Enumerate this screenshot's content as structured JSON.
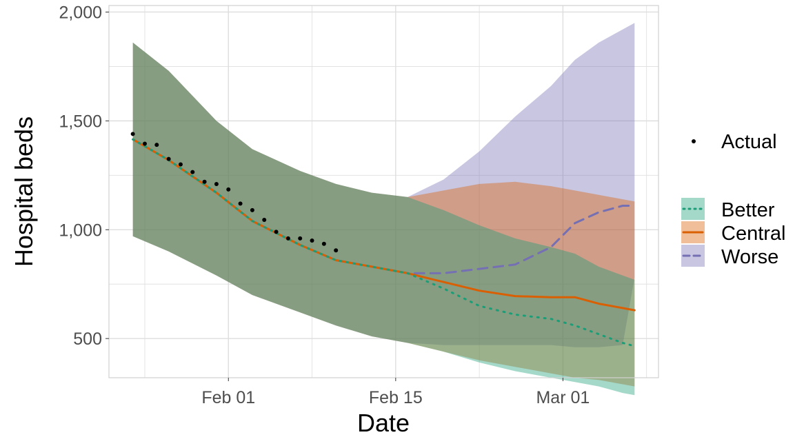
{
  "chart_data": {
    "type": "line",
    "title": "",
    "xlabel": "Date",
    "ylabel": "Hospital beds",
    "x_ticks": [
      {
        "date": "2021-02-01",
        "label": "Feb 01"
      },
      {
        "date": "2021-02-15",
        "label": "Feb 15"
      },
      {
        "date": "2021-03-01",
        "label": "Mar 01"
      }
    ],
    "y_ticks": [
      {
        "value": 500,
        "label": "500"
      },
      {
        "value": 1000,
        "label": "1,000"
      },
      {
        "value": 1500,
        "label": "1,500"
      },
      {
        "value": 2000,
        "label": "2,000"
      }
    ],
    "xlim": [
      "2021-01-22",
      "2021-03-09"
    ],
    "ylim": [
      320,
      2030
    ],
    "grid": true,
    "legend_position": "right",
    "legend_actual_label": "Actual",
    "legend_scenarios": [
      "Better",
      "Central",
      "Worse"
    ],
    "colors": {
      "better": "#1b9e77",
      "central": "#d95f02",
      "worse": "#7570b3",
      "actual": "#000000",
      "grid": "#dedede",
      "background": "#ffffff"
    },
    "actual": {
      "x": [
        "2021-01-24",
        "2021-01-25",
        "2021-01-26",
        "2021-01-27",
        "2021-01-28",
        "2021-01-29",
        "2021-01-30",
        "2021-01-31",
        "2021-02-01",
        "2021-02-02",
        "2021-02-03",
        "2021-02-04",
        "2021-02-05",
        "2021-02-06",
        "2021-02-07",
        "2021-02-08",
        "2021-02-09",
        "2021-02-10"
      ],
      "y": [
        1440,
        1395,
        1390,
        1325,
        1300,
        1265,
        1220,
        1210,
        1185,
        1120,
        1090,
        1045,
        990,
        960,
        960,
        950,
        935,
        905
      ]
    },
    "series": [
      {
        "name": "Worse",
        "x": [
          "2021-01-24",
          "2021-01-27",
          "2021-01-31",
          "2021-02-03",
          "2021-02-07",
          "2021-02-10",
          "2021-02-13",
          "2021-02-16",
          "2021-02-19",
          "2021-02-22",
          "2021-02-25",
          "2021-02-28",
          "2021-03-02",
          "2021-03-04",
          "2021-03-06",
          "2021-03-07"
        ],
        "y": [
          1415,
          1320,
          1170,
          1040,
          930,
          860,
          830,
          800,
          800,
          820,
          840,
          920,
          1030,
          1080,
          1110,
          1110
        ],
        "lower": [
          970,
          900,
          790,
          700,
          620,
          560,
          510,
          480,
          470,
          470,
          470,
          470,
          460,
          460,
          470,
          780
        ],
        "upper": [
          1860,
          1730,
          1500,
          1370,
          1270,
          1210,
          1170,
          1150,
          1230,
          1360,
          1520,
          1660,
          1780,
          1860,
          1920,
          1950
        ]
      },
      {
        "name": "Central",
        "x": [
          "2021-01-24",
          "2021-01-27",
          "2021-01-31",
          "2021-02-03",
          "2021-02-07",
          "2021-02-10",
          "2021-02-13",
          "2021-02-16",
          "2021-02-19",
          "2021-02-22",
          "2021-02-25",
          "2021-02-28",
          "2021-03-02",
          "2021-03-04",
          "2021-03-06",
          "2021-03-07"
        ],
        "y": [
          1415,
          1320,
          1170,
          1040,
          930,
          860,
          830,
          800,
          760,
          720,
          695,
          690,
          690,
          660,
          640,
          630
        ],
        "lower": [
          970,
          900,
          790,
          700,
          620,
          560,
          510,
          480,
          440,
          400,
          370,
          340,
          320,
          310,
          290,
          280
        ],
        "upper": [
          1860,
          1730,
          1500,
          1370,
          1270,
          1210,
          1170,
          1150,
          1180,
          1210,
          1220,
          1200,
          1180,
          1160,
          1140,
          1130
        ]
      },
      {
        "name": "Better",
        "x": [
          "2021-01-24",
          "2021-01-27",
          "2021-01-31",
          "2021-02-03",
          "2021-02-07",
          "2021-02-10",
          "2021-02-13",
          "2021-02-16",
          "2021-02-19",
          "2021-02-22",
          "2021-02-25",
          "2021-02-28",
          "2021-03-02",
          "2021-03-04",
          "2021-03-06",
          "2021-03-07"
        ],
        "y": [
          1415,
          1320,
          1170,
          1040,
          930,
          860,
          830,
          800,
          730,
          650,
          610,
          590,
          560,
          520,
          480,
          465
        ],
        "lower": [
          970,
          900,
          790,
          700,
          620,
          560,
          510,
          480,
          440,
          390,
          350,
          320,
          300,
          280,
          250,
          240
        ],
        "upper": [
          1860,
          1730,
          1500,
          1370,
          1270,
          1210,
          1170,
          1150,
          1090,
          1020,
          960,
          920,
          890,
          830,
          790,
          770
        ]
      }
    ]
  }
}
